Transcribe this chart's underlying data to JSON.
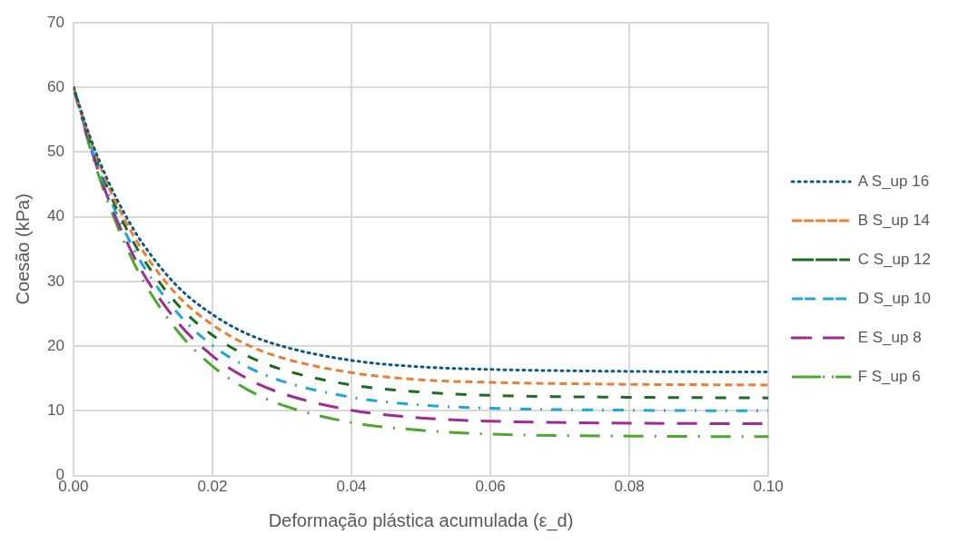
{
  "chart_data": {
    "type": "line",
    "xlabel": "Deformação plástica acumulada (ε_d)",
    "ylabel": "Coesão (kPa)",
    "x": [
      0,
      0.0025,
      0.005,
      0.0075,
      0.01,
      0.015,
      0.02,
      0.025,
      0.03,
      0.04,
      0.05,
      0.06,
      0.08,
      0.1
    ],
    "series": [
      {
        "name": "A S_up 16",
        "color": "#0e5a80",
        "line_style": "dotted",
        "values": [
          60,
          52.0,
          45.5,
          40.2,
          35.8,
          29.2,
          24.9,
          21.9,
          20.0,
          17.8,
          16.8,
          16.4,
          16.1,
          16
        ]
      },
      {
        "name": "B S_up 14",
        "color": "#ed7d31",
        "line_style": "dashed",
        "values": [
          60,
          51.7,
          44.8,
          39.3,
          34.7,
          27.8,
          23.3,
          20.2,
          18.2,
          15.9,
          14.8,
          14.4,
          14.1,
          14
        ]
      },
      {
        "name": "C S_up 12",
        "color": "#1e6b24",
        "line_style": "dashed",
        "values": [
          60,
          51.3,
          44.2,
          38.4,
          33.6,
          26.4,
          21.7,
          18.5,
          16.4,
          14.0,
          12.9,
          12.4,
          12.1,
          12
        ]
      },
      {
        "name": "D S_up 10",
        "color": "#1ea7dc",
        "line_style": "dashed",
        "values": [
          60,
          51.0,
          43.5,
          37.5,
          32.5,
          25.1,
          20.1,
          16.8,
          14.6,
          12.1,
          10.9,
          10.4,
          10.1,
          10
        ]
      },
      {
        "name": "E S_up 8",
        "color": "#a02b93",
        "line_style": "dashed",
        "values": [
          60,
          50.6,
          42.8,
          36.5,
          31.3,
          23.7,
          18.5,
          15.0,
          12.7,
          10.1,
          8.9,
          8.4,
          8.1,
          8
        ]
      },
      {
        "name": "F S_up 6",
        "color": "#4ea72e",
        "line_style": "dashed",
        "values": [
          60,
          50.2,
          42.2,
          35.6,
          30.2,
          22.3,
          16.9,
          13.3,
          10.9,
          8.2,
          7.0,
          6.4,
          6.1,
          6
        ]
      }
    ],
    "xlim": [
      0,
      0.1
    ],
    "xticks": [
      {
        "value": 0,
        "label": "0.00"
      },
      {
        "value": 0.02,
        "label": "0.02"
      },
      {
        "value": 0.04,
        "label": "0.04"
      },
      {
        "value": 0.06,
        "label": "0.06"
      },
      {
        "value": 0.08,
        "label": "0.08"
      },
      {
        "value": 0.1,
        "label": "0.10"
      }
    ],
    "ylim": [
      0,
      70
    ],
    "yticks": [
      0,
      10,
      20,
      30,
      40,
      50,
      60,
      70
    ],
    "grid": true,
    "legend": "right",
    "marker": "none"
  }
}
